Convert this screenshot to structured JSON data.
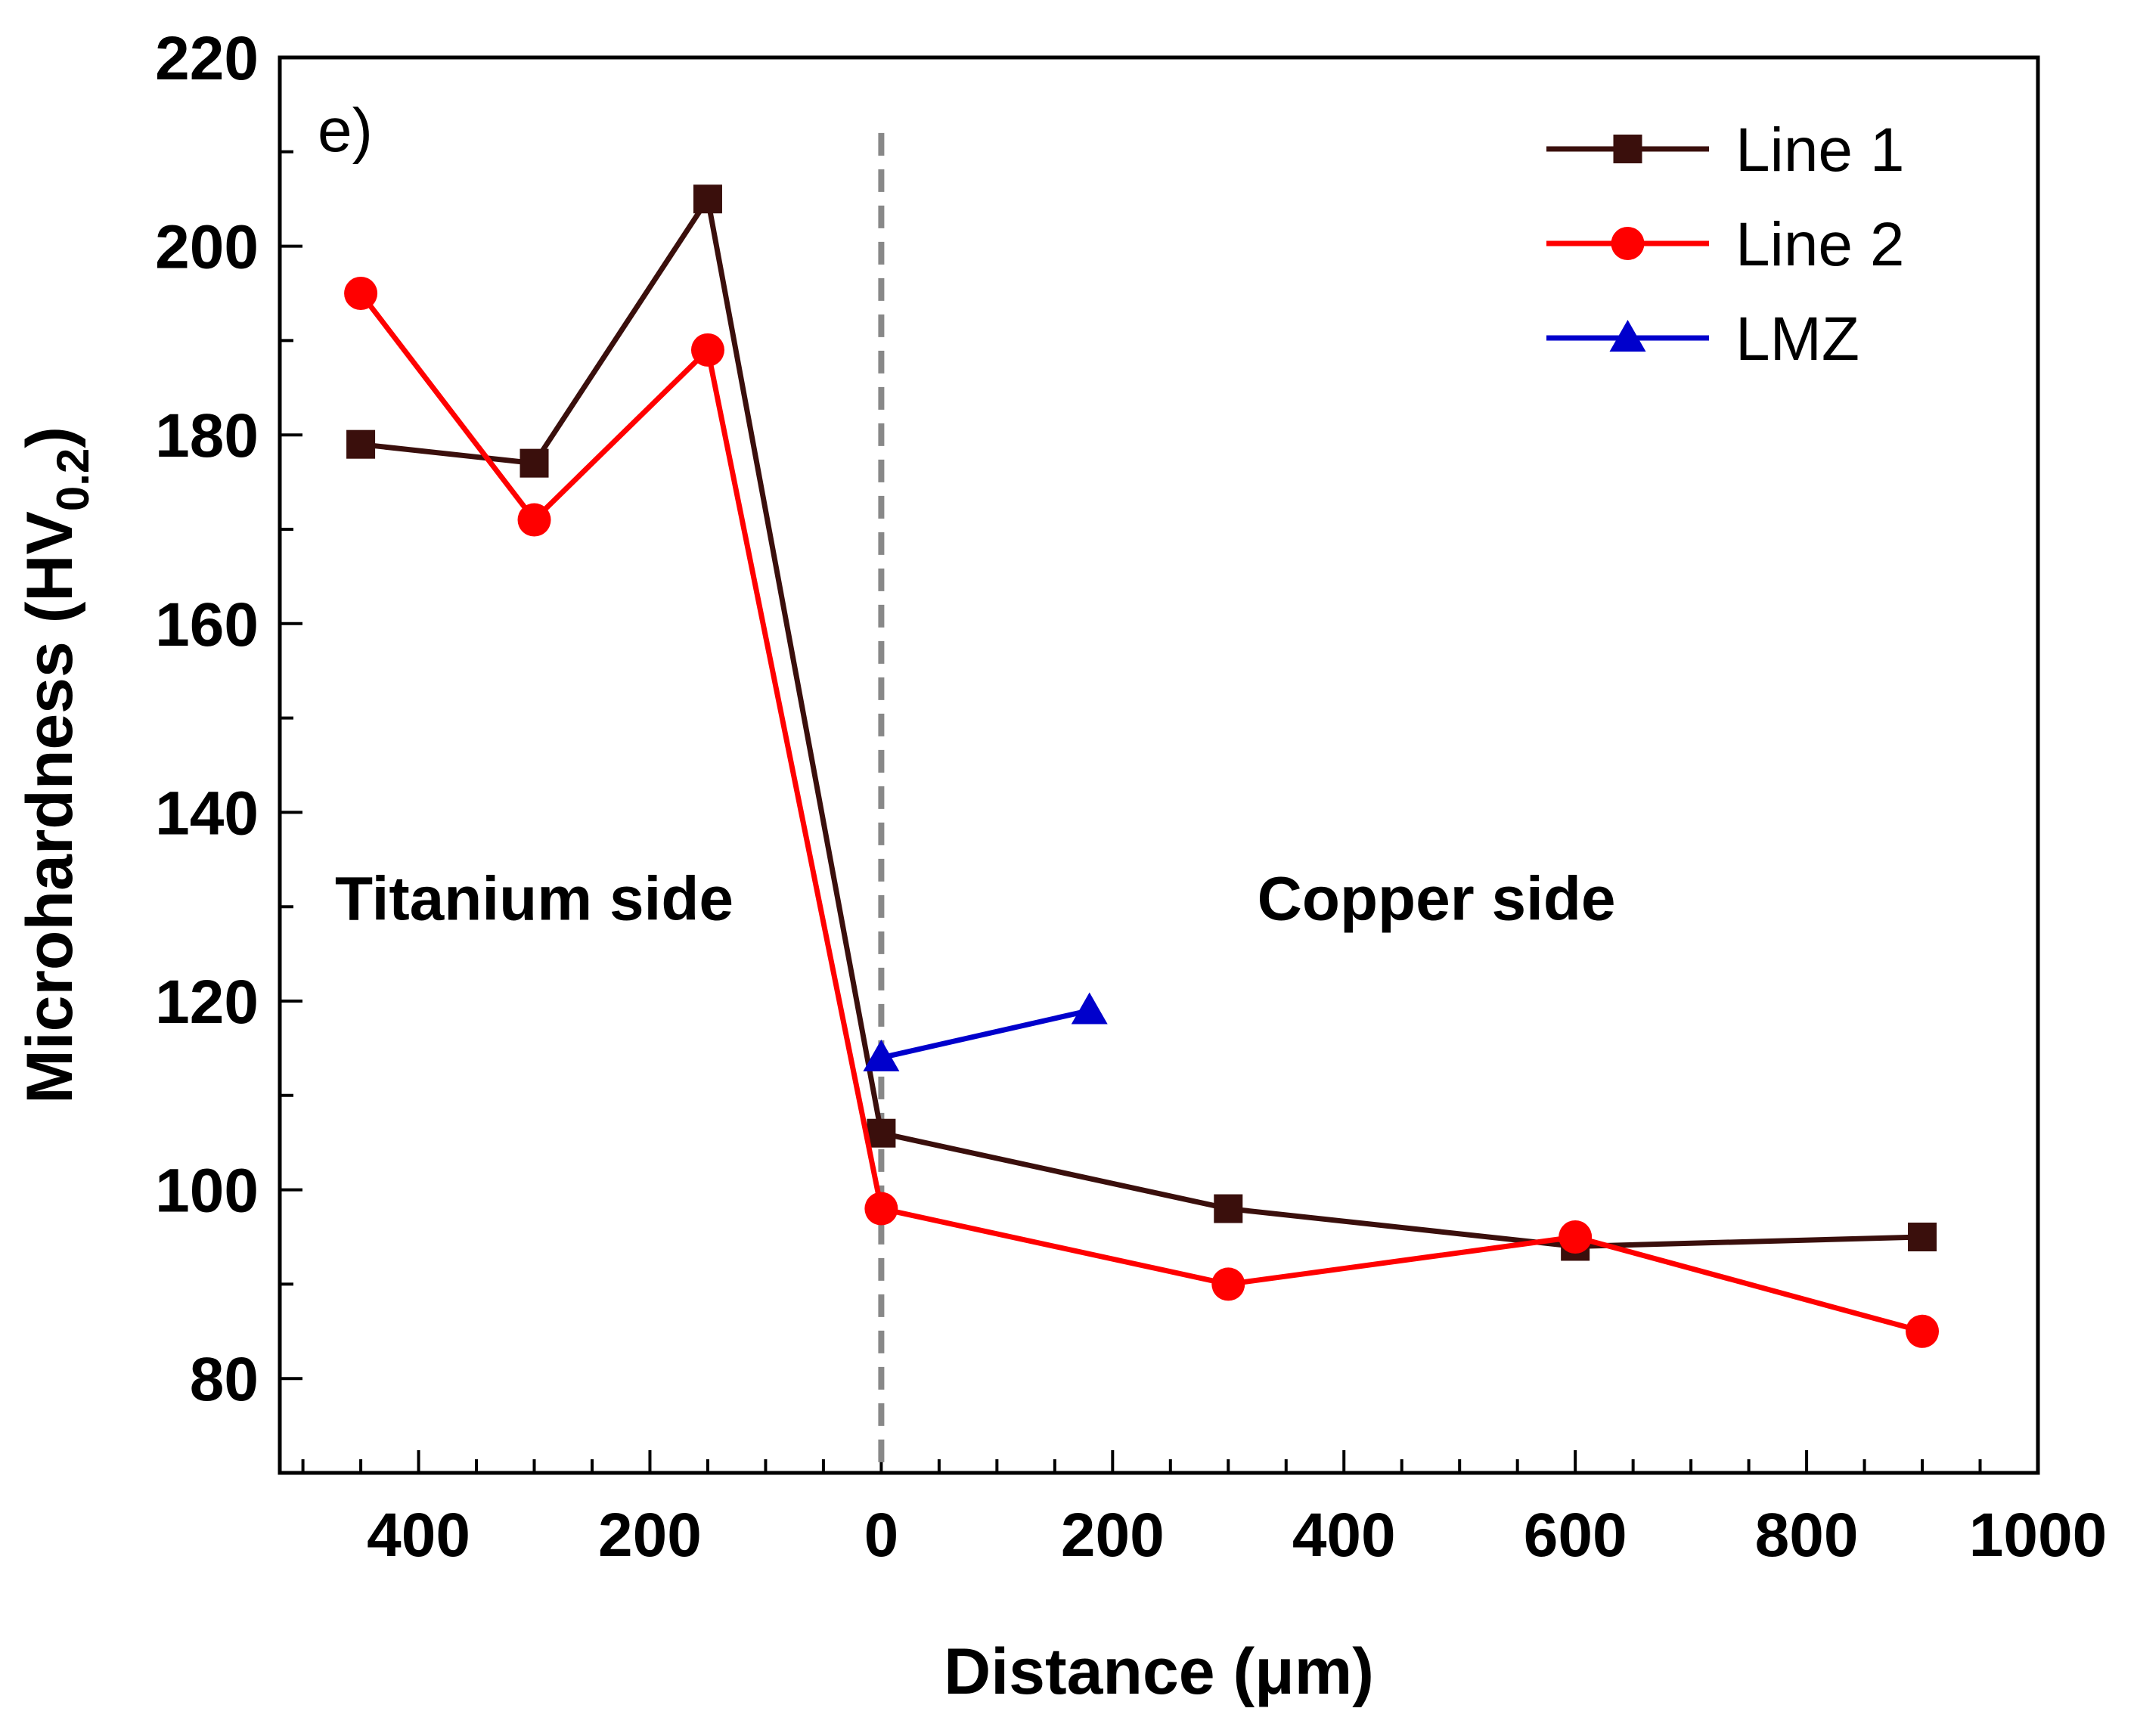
{
  "chart_data": {
    "type": "line",
    "panel_label": "e)",
    "xlabel": "Distance (μm)",
    "ylabel": {
      "main": "Microhardness (HV",
      "subscript": "0.2",
      "close": ")"
    },
    "xlim": [
      -520,
      1000
    ],
    "ylim": [
      70,
      220
    ],
    "x_ticks": [
      {
        "value": -400,
        "label": "400"
      },
      {
        "value": -200,
        "label": "200"
      },
      {
        "value": 0,
        "label": "0"
      },
      {
        "value": 200,
        "label": "200"
      },
      {
        "value": 400,
        "label": "400"
      },
      {
        "value": 600,
        "label": "600"
      },
      {
        "value": 800,
        "label": "800"
      },
      {
        "value": 1000,
        "label": "1000"
      }
    ],
    "y_ticks": [
      {
        "value": 80,
        "label": "80"
      },
      {
        "value": 100,
        "label": "100"
      },
      {
        "value": 120,
        "label": "120"
      },
      {
        "value": 140,
        "label": "140"
      },
      {
        "value": 160,
        "label": "160"
      },
      {
        "value": 180,
        "label": "180"
      },
      {
        "value": 200,
        "label": "200"
      },
      {
        "value": 220,
        "label": "220"
      }
    ],
    "x_minor_step": 50,
    "y_minor_step": 10,
    "interface_x": 0,
    "regions": [
      {
        "label": "Titanium side",
        "x": -300,
        "y": 131
      },
      {
        "label": "Copper side",
        "x": 480,
        "y": 131
      }
    ],
    "legend_position": "top-right",
    "series": [
      {
        "name": "Line 1",
        "color": "#3a0f0c",
        "marker": "square",
        "x": [
          -450,
          -300,
          -150,
          0,
          300,
          600,
          900
        ],
        "y": [
          179,
          177,
          205,
          106,
          98,
          94,
          95
        ]
      },
      {
        "name": "Line 2",
        "color": "#ff0000",
        "marker": "circle",
        "x": [
          -450,
          -300,
          -150,
          0,
          300,
          600,
          900
        ],
        "y": [
          195,
          171,
          189,
          98,
          90,
          95,
          85
        ]
      },
      {
        "name": "LMZ",
        "color": "#0000cc",
        "marker": "triangle",
        "x": [
          0,
          180
        ],
        "y": [
          114,
          119
        ]
      }
    ]
  }
}
